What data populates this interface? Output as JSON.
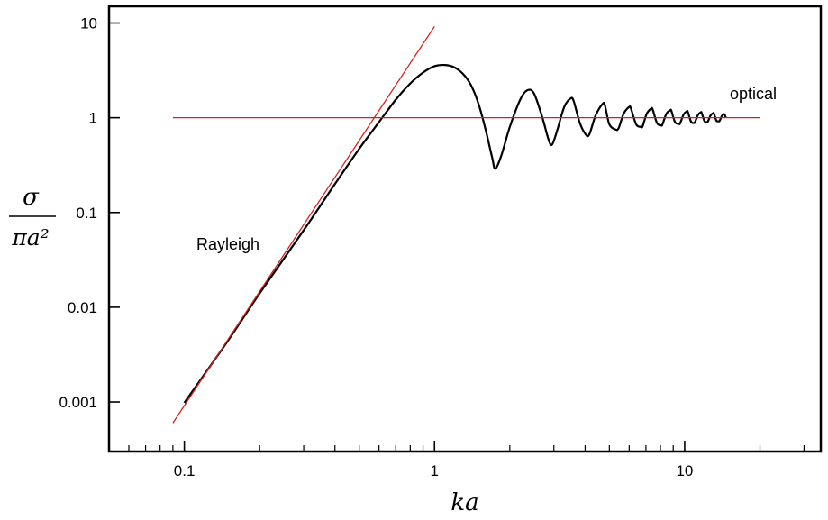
{
  "chart_data": {
    "type": "line",
    "title": "",
    "xlabel": "ka",
    "ylabel_numerator": "σ",
    "ylabel_denominator": "πa²",
    "x_scale": "log",
    "y_scale": "log",
    "xlim": [
      0.05,
      35
    ],
    "ylim": [
      0.0003,
      15
    ],
    "xticks": [
      0.1,
      1,
      10
    ],
    "xtick_labels": [
      "0.1",
      "1",
      "10"
    ],
    "yticks": [
      0.001,
      0.01,
      0.1,
      1,
      10
    ],
    "ytick_labels": [
      "0.001",
      "0.01",
      "0.1",
      "1",
      "10"
    ],
    "grid": false,
    "legend": "none",
    "colors": {
      "curve": "#000000",
      "asymptotes": "#d6201c"
    },
    "annotations": [
      {
        "text": "Rayleigh",
        "x": 0.1,
        "y": 0.07
      },
      {
        "text": "optical",
        "x": 12,
        "y": 2.5
      }
    ],
    "series": [
      {
        "x": [
          0.1,
          0.15,
          0.2,
          0.3,
          0.4,
          0.5,
          0.6,
          0.7,
          0.8,
          0.9,
          1.0,
          1.1,
          1.2,
          1.3,
          1.4,
          1.5,
          1.6,
          1.7,
          1.75,
          1.85,
          2.0,
          2.2,
          2.35,
          2.5,
          2.7,
          2.85,
          2.95,
          3.1,
          3.3,
          3.5,
          3.6,
          3.8,
          4.0,
          4.15,
          4.4,
          4.7,
          4.8,
          5.0,
          5.3,
          5.45,
          5.7,
          6.0,
          6.1,
          6.4,
          6.7,
          6.8,
          7.05,
          7.35,
          7.45,
          7.75,
          8.05,
          8.15,
          8.45,
          8.75,
          8.85,
          9.15,
          9.5,
          9.6,
          9.9,
          10.2,
          10.3,
          10.6,
          10.9,
          11.0,
          11.3,
          11.6,
          11.7,
          12.0,
          12.3,
          12.4,
          12.7,
          13.0,
          13.1,
          13.4,
          13.7,
          13.8,
          14.1,
          14.4,
          14.6
        ],
        "values": [
          0.00098,
          0.0045,
          0.014,
          0.065,
          0.2,
          0.47,
          0.9,
          1.55,
          2.3,
          3.0,
          3.5,
          3.6,
          3.4,
          2.9,
          2.2,
          1.4,
          0.75,
          0.38,
          0.29,
          0.4,
          0.8,
          1.55,
          1.95,
          1.8,
          1.0,
          0.6,
          0.52,
          0.75,
          1.3,
          1.6,
          1.5,
          0.9,
          0.68,
          0.66,
          1.05,
          1.4,
          1.35,
          0.85,
          0.75,
          0.78,
          1.1,
          1.3,
          1.25,
          0.85,
          0.8,
          0.82,
          1.1,
          1.25,
          1.22,
          0.88,
          0.83,
          0.85,
          1.1,
          1.2,
          1.18,
          0.9,
          0.86,
          0.88,
          1.08,
          1.17,
          1.15,
          0.91,
          0.88,
          0.9,
          1.07,
          1.14,
          1.12,
          0.92,
          0.9,
          0.92,
          1.06,
          1.12,
          1.1,
          0.93,
          0.92,
          0.93,
          1.05,
          1.09,
          1.0
        ]
      },
      {
        "x": [
          0.09,
          1.0
        ],
        "values": [
          0.0006,
          9.2
        ]
      },
      {
        "x": [
          0.09,
          20
        ],
        "values": [
          1,
          1
        ]
      }
    ]
  }
}
